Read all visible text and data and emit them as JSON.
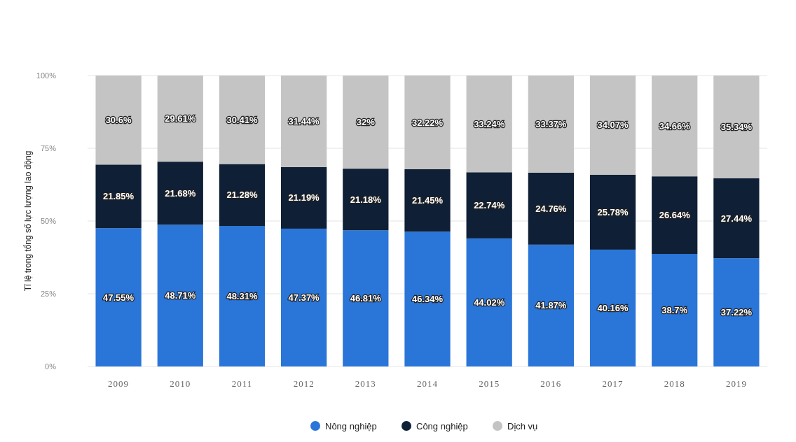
{
  "chart_data": {
    "type": "bar",
    "stacked": true,
    "ylabel": "Tỉ lệ trong tổng số lực lượng lao động",
    "categories": [
      "2009",
      "2010",
      "2011",
      "2012",
      "2013",
      "2014",
      "2015",
      "2016",
      "2017",
      "2018",
      "2019"
    ],
    "ylim": [
      0,
      100
    ],
    "yticks": [
      {
        "value": 0,
        "label": "0%"
      },
      {
        "value": 25,
        "label": "25%"
      },
      {
        "value": 50,
        "label": "50%"
      },
      {
        "value": 75,
        "label": "75%"
      },
      {
        "value": 100,
        "label": "100%"
      }
    ],
    "grid": "y",
    "legend": "bottom",
    "series": [
      {
        "name": "Nông nghiệp",
        "color": "#2a75d8",
        "values": [
          47.55,
          48.71,
          48.31,
          47.37,
          46.81,
          46.34,
          44.02,
          41.87,
          40.16,
          38.7,
          37.22
        ],
        "value_labels": [
          "47.55%",
          "48.71%",
          "48.31%",
          "47.37%",
          "46.81%",
          "46.34%",
          "44.02%",
          "41.87%",
          "40.16%",
          "38.7%",
          "37.22%"
        ]
      },
      {
        "name": "Công nghiệp",
        "color": "#0f1f35",
        "values": [
          21.85,
          21.68,
          21.28,
          21.19,
          21.18,
          21.45,
          22.74,
          24.76,
          25.78,
          26.64,
          27.44
        ],
        "value_labels": [
          "21.85%",
          "21.68%",
          "21.28%",
          "21.19%",
          "21.18%",
          "21.45%",
          "22.74%",
          "24.76%",
          "25.78%",
          "26.64%",
          "27.44%"
        ]
      },
      {
        "name": "Dịch vụ",
        "color": "#c4c4c4",
        "values": [
          30.6,
          29.61,
          30.41,
          31.44,
          32,
          32.22,
          33.24,
          33.37,
          34.07,
          34.66,
          35.34
        ],
        "value_labels": [
          "30.6%",
          "29.61%",
          "30.41%",
          "31.44%",
          "32%",
          "32.22%",
          "33.24%",
          "33.37%",
          "34.07%",
          "34.66%",
          "35.34%"
        ]
      }
    ]
  }
}
